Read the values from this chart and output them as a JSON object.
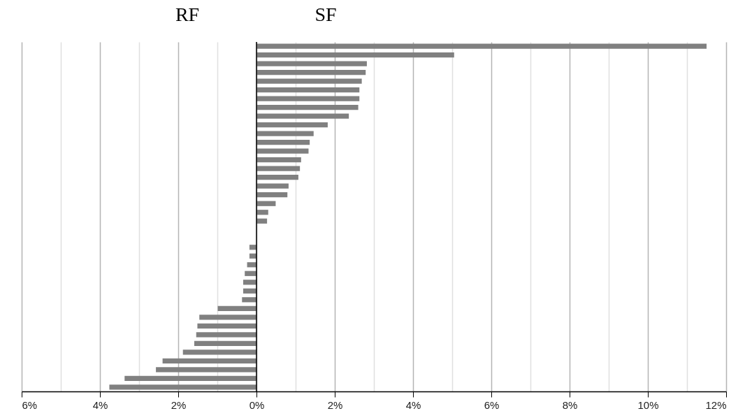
{
  "chart_data": {
    "type": "bar",
    "orientation": "horizontal",
    "categories": [
      null,
      null,
      null,
      null,
      null,
      null,
      null,
      null,
      null,
      null,
      null,
      null,
      null,
      null,
      null,
      null,
      null,
      null,
      null,
      null,
      null,
      null,
      null,
      null,
      null,
      null,
      null,
      null,
      null,
      null,
      null,
      null,
      null,
      null,
      null,
      null,
      null,
      null,
      null,
      null
    ],
    "series": [
      {
        "color": "#808080",
        "values": [
          11.5,
          5.05,
          2.82,
          2.79,
          2.69,
          2.63,
          2.63,
          2.6,
          2.36,
          1.82,
          1.46,
          1.36,
          1.33,
          1.14,
          1.11,
          1.07,
          0.82,
          0.79,
          0.49,
          0.3,
          0.27,
          null,
          null,
          -0.18,
          -0.18,
          -0.24,
          -0.3,
          -0.34,
          -0.34,
          -0.37,
          -0.99,
          -1.46,
          -1.51,
          -1.54,
          -1.59,
          -1.88,
          -2.4,
          -2.57,
          -3.37,
          -3.76
        ]
      }
    ],
    "xlim": [
      -6,
      12
    ],
    "xticks": [
      {
        "value": -6,
        "label": "6%"
      },
      {
        "value": -5,
        "label": null
      },
      {
        "value": -4,
        "label": "4%"
      },
      {
        "value": -3,
        "label": null
      },
      {
        "value": -2,
        "label": "2%"
      },
      {
        "value": -1,
        "label": null
      },
      {
        "value": 0,
        "label": "0%"
      },
      {
        "value": 1,
        "label": null
      },
      {
        "value": 2,
        "label": "2%"
      },
      {
        "value": 3,
        "label": null
      },
      {
        "value": 4,
        "label": "4%"
      },
      {
        "value": 5,
        "label": null
      },
      {
        "value": 6,
        "label": "6%"
      },
      {
        "value": 7,
        "label": null
      },
      {
        "value": 8,
        "label": "8%"
      },
      {
        "value": 9,
        "label": null
      },
      {
        "value": 10,
        "label": "10%"
      },
      {
        "value": 11,
        "label": null
      },
      {
        "value": 12,
        "label": "12%"
      }
    ],
    "grid": "x",
    "ref_lines": [
      {
        "axis": "x",
        "value": 0,
        "color": "#000000"
      }
    ],
    "annotations": [
      "RF",
      "SF"
    ]
  }
}
